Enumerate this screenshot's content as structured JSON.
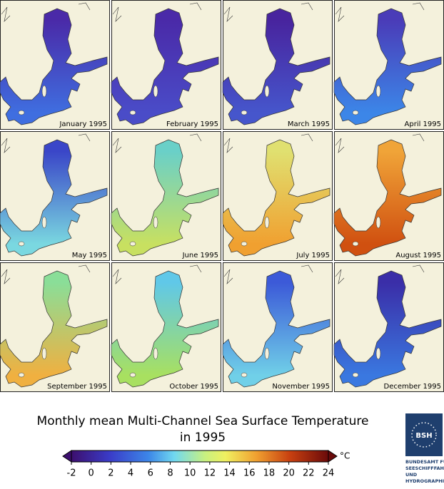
{
  "panels": [
    {
      "label": "January 1995",
      "colors": [
        "#4a2aa8",
        "#3f6ee0"
      ]
    },
    {
      "label": "February 1995",
      "colors": [
        "#4a2aa8",
        "#4a4cc8"
      ]
    },
    {
      "label": "March 1995",
      "colors": [
        "#48249e",
        "#4656cc"
      ]
    },
    {
      "label": "April 1995",
      "colors": [
        "#4a3cb8",
        "#3c86e8"
      ]
    },
    {
      "label": "May 1995",
      "colors": [
        "#3a46c8",
        "#7ad8e0"
      ]
    },
    {
      "label": "June 1995",
      "colors": [
        "#6ad0c8",
        "#c8e060"
      ]
    },
    {
      "label": "July 1995",
      "colors": [
        "#e0e070",
        "#f0a030"
      ]
    },
    {
      "label": "August 1995",
      "colors": [
        "#f0a438",
        "#d05010"
      ]
    },
    {
      "label": "September 1995",
      "colors": [
        "#8ade98",
        "#f0b040"
      ]
    },
    {
      "label": "October 1995",
      "colors": [
        "#60c8e8",
        "#a8e060"
      ]
    },
    {
      "label": "November 1995",
      "colors": [
        "#3c5ad8",
        "#70d0e8"
      ]
    },
    {
      "label": "December 1995",
      "colors": [
        "#3a2ea8",
        "#3a78e0"
      ]
    }
  ],
  "title": [
    "Monthly mean Multi-Channel Sea Surface Temperature",
    "in 1995"
  ],
  "colorbar": {
    "lim": [
      -2,
      24
    ],
    "ticks": [
      -2,
      0,
      2,
      4,
      6,
      8,
      10,
      12,
      14,
      16,
      18,
      20,
      22,
      24
    ],
    "unit": "°C"
  },
  "logo": {
    "mark": "BSH",
    "text": [
      "BUNDESAMT FÜR",
      "SEESCHIFFFAHRT",
      "UND",
      "HYDROGRAPHIE"
    ]
  }
}
